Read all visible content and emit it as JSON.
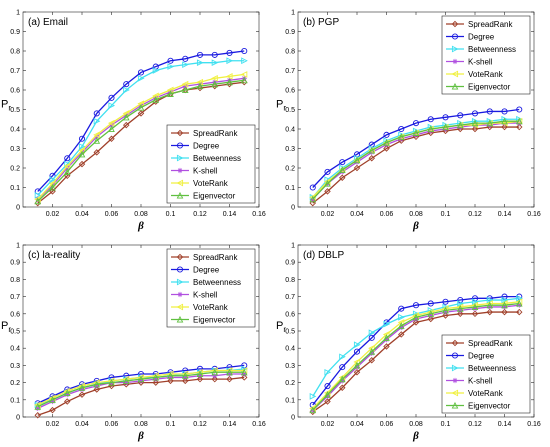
{
  "colors": {
    "SpreadRank": "#a0402a",
    "Degree": "#1a1ae0",
    "Betweenness": "#40e0f0",
    "K-shell": "#b050e0",
    "VoteRank": "#f0f040",
    "Eigenvector": "#60c040"
  },
  "markers": {
    "SpreadRank": "diamond",
    "Degree": "circle",
    "Betweenness": "triangle-right",
    "K-shell": "star",
    "VoteRank": "triangle-left",
    "Eigenvector": "triangle-up"
  },
  "chart_data": [
    {
      "type": "line",
      "title": "(a) Email",
      "xlabel": "β",
      "ylabel": "Pr",
      "xlim": [
        0,
        0.16
      ],
      "ylim": [
        0,
        1
      ],
      "xticks": [
        "0.02",
        "0.04",
        "0.06",
        "0.08",
        "0.1",
        "0.12",
        "0.14",
        "0.16"
      ],
      "yticks": [
        "0",
        "0.1",
        "0.2",
        "0.3",
        "0.4",
        "0.5",
        "0.6",
        "0.7",
        "0.8",
        "0.9",
        "1"
      ],
      "legend_position": "bottom-right",
      "x": [
        0.01,
        0.02,
        0.03,
        0.04,
        0.05,
        0.06,
        0.07,
        0.08,
        0.09,
        0.1,
        0.11,
        0.12,
        0.13,
        0.14,
        0.15
      ],
      "series": [
        {
          "name": "SpreadRank",
          "values": [
            0.02,
            0.08,
            0.16,
            0.22,
            0.28,
            0.35,
            0.42,
            0.48,
            0.54,
            0.58,
            0.6,
            0.61,
            0.62,
            0.63,
            0.64
          ]
        },
        {
          "name": "Degree",
          "values": [
            0.08,
            0.16,
            0.25,
            0.35,
            0.48,
            0.56,
            0.63,
            0.69,
            0.72,
            0.75,
            0.76,
            0.78,
            0.78,
            0.79,
            0.8
          ]
        },
        {
          "name": "Betweenness",
          "values": [
            0.06,
            0.14,
            0.22,
            0.31,
            0.44,
            0.52,
            0.6,
            0.66,
            0.7,
            0.72,
            0.73,
            0.74,
            0.74,
            0.75,
            0.75
          ]
        },
        {
          "name": "K-shell",
          "values": [
            0.04,
            0.11,
            0.2,
            0.28,
            0.36,
            0.42,
            0.47,
            0.52,
            0.56,
            0.59,
            0.62,
            0.63,
            0.64,
            0.65,
            0.66
          ]
        },
        {
          "name": "VoteRank",
          "values": [
            0.04,
            0.12,
            0.21,
            0.29,
            0.37,
            0.43,
            0.48,
            0.53,
            0.57,
            0.6,
            0.63,
            0.64,
            0.66,
            0.67,
            0.68
          ]
        },
        {
          "name": "Eigenvector",
          "values": [
            0.03,
            0.1,
            0.18,
            0.27,
            0.34,
            0.4,
            0.46,
            0.51,
            0.55,
            0.58,
            0.6,
            0.62,
            0.63,
            0.64,
            0.65
          ]
        }
      ]
    },
    {
      "type": "line",
      "title": "(b) PGP",
      "xlabel": "β",
      "ylabel": "Pr",
      "xlim": [
        0,
        0.16
      ],
      "ylim": [
        0,
        1
      ],
      "xticks": [
        "0.02",
        "0.04",
        "0.06",
        "0.08",
        "0.1",
        "0.12",
        "0.14",
        "0.16"
      ],
      "yticks": [
        "0",
        "0.1",
        "0.2",
        "0.3",
        "0.4",
        "0.5",
        "0.6",
        "0.7",
        "0.8",
        "0.9",
        "1"
      ],
      "legend_position": "top-right",
      "x": [
        0.01,
        0.02,
        0.03,
        0.04,
        0.05,
        0.06,
        0.07,
        0.08,
        0.09,
        0.1,
        0.11,
        0.12,
        0.13,
        0.14,
        0.15
      ],
      "series": [
        {
          "name": "SpreadRank",
          "values": [
            0.02,
            0.08,
            0.15,
            0.2,
            0.25,
            0.3,
            0.34,
            0.36,
            0.38,
            0.39,
            0.4,
            0.4,
            0.41,
            0.41,
            0.41
          ]
        },
        {
          "name": "Degree",
          "values": [
            0.1,
            0.18,
            0.23,
            0.27,
            0.32,
            0.37,
            0.4,
            0.43,
            0.45,
            0.46,
            0.47,
            0.48,
            0.49,
            0.49,
            0.5
          ]
        },
        {
          "name": "Betweenness",
          "values": [
            0.05,
            0.14,
            0.2,
            0.25,
            0.3,
            0.34,
            0.37,
            0.39,
            0.41,
            0.42,
            0.43,
            0.44,
            0.44,
            0.45,
            0.45
          ]
        },
        {
          "name": "K-shell",
          "values": [
            0.04,
            0.12,
            0.18,
            0.23,
            0.28,
            0.32,
            0.35,
            0.37,
            0.39,
            0.4,
            0.41,
            0.42,
            0.42,
            0.43,
            0.43
          ]
        },
        {
          "name": "VoteRank",
          "values": [
            0.05,
            0.13,
            0.19,
            0.24,
            0.29,
            0.33,
            0.36,
            0.38,
            0.4,
            0.41,
            0.42,
            0.42,
            0.43,
            0.43,
            0.44
          ]
        },
        {
          "name": "Eigenvector",
          "values": [
            0.04,
            0.12,
            0.19,
            0.24,
            0.29,
            0.33,
            0.36,
            0.38,
            0.4,
            0.41,
            0.42,
            0.43,
            0.43,
            0.44,
            0.44
          ]
        }
      ]
    },
    {
      "type": "line",
      "title": "(c) la-reality",
      "xlabel": "β",
      "ylabel": "Pr",
      "xlim": [
        0,
        0.16
      ],
      "ylim": [
        0,
        1
      ],
      "xticks": [
        "0.02",
        "0.04",
        "0.06",
        "0.08",
        "0.1",
        "0.12",
        "0.14",
        "0.16"
      ],
      "yticks": [
        "0",
        "0.1",
        "0.2",
        "0.3",
        "0.4",
        "0.5",
        "0.6",
        "0.7",
        "0.8",
        "0.9",
        "1"
      ],
      "legend_position": "top-right",
      "x": [
        0.01,
        0.02,
        0.03,
        0.04,
        0.05,
        0.06,
        0.07,
        0.08,
        0.09,
        0.1,
        0.11,
        0.12,
        0.13,
        0.14,
        0.15
      ],
      "series": [
        {
          "name": "SpreadRank",
          "values": [
            0.01,
            0.04,
            0.09,
            0.13,
            0.16,
            0.18,
            0.19,
            0.2,
            0.2,
            0.21,
            0.21,
            0.22,
            0.22,
            0.22,
            0.23
          ]
        },
        {
          "name": "Degree",
          "values": [
            0.08,
            0.12,
            0.16,
            0.19,
            0.21,
            0.23,
            0.24,
            0.25,
            0.25,
            0.26,
            0.27,
            0.28,
            0.28,
            0.29,
            0.3
          ]
        },
        {
          "name": "Betweenness",
          "values": [
            0.07,
            0.1,
            0.14,
            0.17,
            0.19,
            0.21,
            0.22,
            0.23,
            0.23,
            0.24,
            0.25,
            0.26,
            0.27,
            0.27,
            0.28
          ]
        },
        {
          "name": "K-shell",
          "values": [
            0.05,
            0.09,
            0.13,
            0.16,
            0.18,
            0.2,
            0.2,
            0.21,
            0.22,
            0.23,
            0.23,
            0.24,
            0.24,
            0.25,
            0.25
          ]
        },
        {
          "name": "VoteRank",
          "values": [
            0.07,
            0.11,
            0.15,
            0.18,
            0.2,
            0.21,
            0.22,
            0.23,
            0.24,
            0.25,
            0.25,
            0.26,
            0.27,
            0.27,
            0.27
          ]
        },
        {
          "name": "Eigenvector",
          "values": [
            0.06,
            0.1,
            0.14,
            0.17,
            0.19,
            0.2,
            0.21,
            0.22,
            0.23,
            0.24,
            0.24,
            0.25,
            0.26,
            0.26,
            0.26
          ]
        }
      ]
    },
    {
      "type": "line",
      "title": "(d) DBLP",
      "xlabel": "β",
      "ylabel": "Pr",
      "xlim": [
        0,
        0.16
      ],
      "ylim": [
        0,
        1
      ],
      "xticks": [
        "0.02",
        "0.04",
        "0.06",
        "0.08",
        "0.1",
        "0.12",
        "0.14",
        "0.16"
      ],
      "yticks": [
        "0",
        "0.1",
        "0.2",
        "0.3",
        "0.4",
        "0.5",
        "0.6",
        "0.7",
        "0.8",
        "0.9",
        "1"
      ],
      "legend_position": "bottom-right",
      "x": [
        0.01,
        0.02,
        0.03,
        0.04,
        0.05,
        0.06,
        0.07,
        0.08,
        0.09,
        0.1,
        0.11,
        0.12,
        0.13,
        0.14,
        0.15
      ],
      "series": [
        {
          "name": "SpreadRank",
          "values": [
            0.03,
            0.09,
            0.17,
            0.26,
            0.33,
            0.41,
            0.48,
            0.55,
            0.57,
            0.59,
            0.6,
            0.6,
            0.61,
            0.61,
            0.61
          ]
        },
        {
          "name": "Degree",
          "values": [
            0.07,
            0.18,
            0.29,
            0.38,
            0.46,
            0.55,
            0.63,
            0.65,
            0.66,
            0.67,
            0.68,
            0.69,
            0.69,
            0.7,
            0.7
          ]
        },
        {
          "name": "Betweenness",
          "values": [
            0.12,
            0.26,
            0.35,
            0.42,
            0.49,
            0.54,
            0.58,
            0.6,
            0.62,
            0.64,
            0.66,
            0.67,
            0.68,
            0.68,
            0.69
          ]
        },
        {
          "name": "K-shell",
          "values": [
            0.04,
            0.12,
            0.21,
            0.29,
            0.37,
            0.45,
            0.52,
            0.57,
            0.59,
            0.61,
            0.62,
            0.63,
            0.64,
            0.64,
            0.65
          ]
        },
        {
          "name": "VoteRank",
          "values": [
            0.05,
            0.14,
            0.23,
            0.32,
            0.4,
            0.48,
            0.55,
            0.59,
            0.61,
            0.63,
            0.64,
            0.65,
            0.66,
            0.66,
            0.67
          ]
        },
        {
          "name": "Eigenvector",
          "values": [
            0.04,
            0.13,
            0.22,
            0.3,
            0.38,
            0.46,
            0.53,
            0.58,
            0.6,
            0.62,
            0.63,
            0.64,
            0.65,
            0.65,
            0.66
          ]
        }
      ]
    }
  ]
}
